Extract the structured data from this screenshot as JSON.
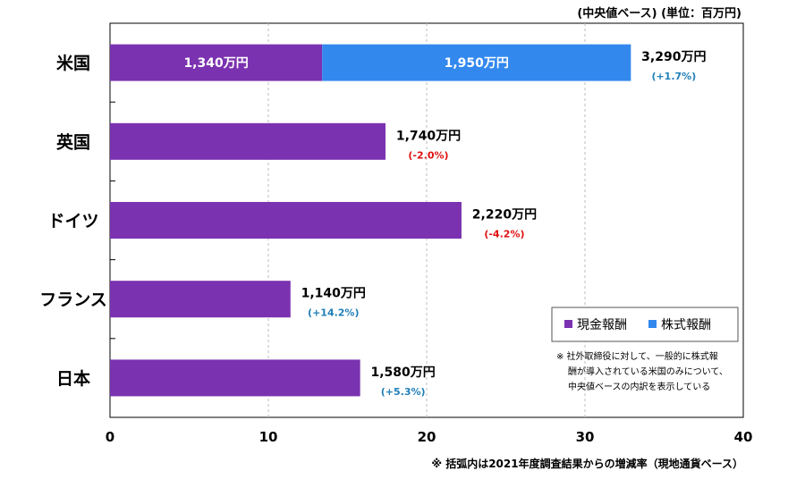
{
  "chart_data": {
    "type": "bar",
    "orientation": "horizontal",
    "stacked": true,
    "unit_label": "(中央値ベース) (単位：百万円)",
    "categories": [
      "米国",
      "英国",
      "ドイツ",
      "フランス",
      "日本"
    ],
    "series": [
      {
        "name": "現金報酬",
        "color": "#7B32B0",
        "values": [
          13.4,
          17.4,
          22.2,
          11.4,
          15.8
        ]
      },
      {
        "name": "株式報酬",
        "color": "#3388EE",
        "values": [
          19.5,
          0,
          0,
          0,
          0
        ]
      }
    ],
    "segment_labels": {
      "cash": [
        "1,340万円",
        "",
        "",
        "",
        ""
      ],
      "stock": [
        "1,950万円",
        "",
        "",
        "",
        ""
      ]
    },
    "totals": [
      "3,290万円",
      "1,740万円",
      "2,220万円",
      "1,140万円",
      "1,580万円"
    ],
    "changes": [
      {
        "text": "(+1.7%)",
        "color": "#1F7FB8"
      },
      {
        "text": "(-2.0%)",
        "color": "#E01010"
      },
      {
        "text": "(-4.2%)",
        "color": "#E01010"
      },
      {
        "text": "(+14.2%)",
        "color": "#1F7FB8"
      },
      {
        "text": "(+5.3%)",
        "color": "#1F7FB8"
      }
    ],
    "xlim": [
      0,
      40
    ],
    "xticks": [
      0,
      10,
      20,
      30,
      40
    ],
    "grid": true,
    "legend_position": "bottom-right",
    "legend_note": [
      "※ 社外取締役に対して、一般的に株式報",
      "酬が導入されている米国のみについて、",
      "中央値ベースの内訳を表示している"
    ],
    "footnote": "※ 括弧内は2021年度調査結果からの増減率（現地通貨ベース）"
  }
}
